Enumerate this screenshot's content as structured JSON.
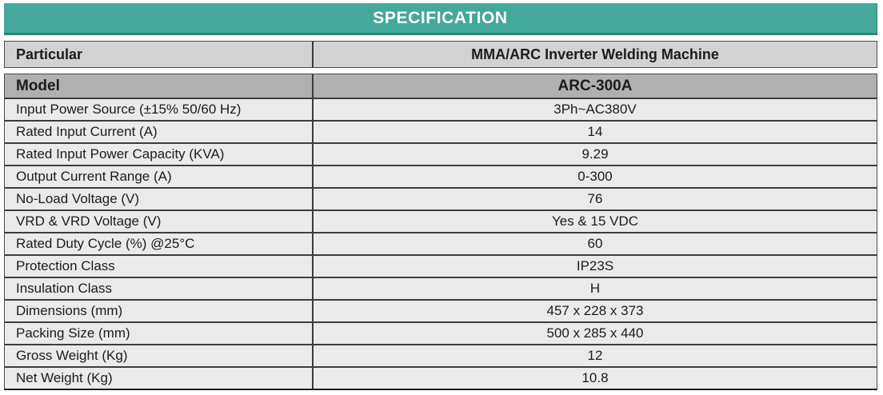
{
  "banner": {
    "title": "SPECIFICATION"
  },
  "header_row": {
    "left": "Particular",
    "right": "MMA/ARC Inverter Welding Machine"
  },
  "model_row": {
    "left": "Model",
    "right": "ARC-300A"
  },
  "spec_rows": [
    {
      "label": "Input Power Source (±15% 50/60 Hz)",
      "value": "3Ph~AC380V"
    },
    {
      "label": "Rated Input Current (A)",
      "value": "14"
    },
    {
      "label": "Rated Input Power Capacity (KVA)",
      "value": "9.29"
    },
    {
      "label": "Output Current Range (A)",
      "value": "0-300"
    },
    {
      "label": "No-Load Voltage (V)",
      "value": "76"
    },
    {
      "label": "VRD & VRD Voltage (V)",
      "value": "Yes & 15 VDC"
    },
    {
      "label": "Rated Duty Cycle (%) @25°C",
      "value": "60"
    },
    {
      "label": "Protection Class",
      "value": "IP23S"
    },
    {
      "label": "Insulation Class",
      "value": "H"
    },
    {
      "label": "Dimensions (mm)",
      "value": "457 x 228 x 373"
    },
    {
      "label": "Packing Size (mm)",
      "value": "500 x 285 x 440"
    },
    {
      "label": "Gross Weight (Kg)",
      "value": "12"
    },
    {
      "label": "Net Weight (Kg)",
      "value": "10.8"
    }
  ],
  "colors": {
    "banner_bg": "#44a89b",
    "banner_border": "#2f8478",
    "banner_text": "#ffffff",
    "particular_row_bg": "#d2d2d2",
    "model_row_bg": "#b0b0b0",
    "data_row_bg": "#eaeaea",
    "border": "#3c3c3c",
    "text": "#1c1c1c"
  }
}
